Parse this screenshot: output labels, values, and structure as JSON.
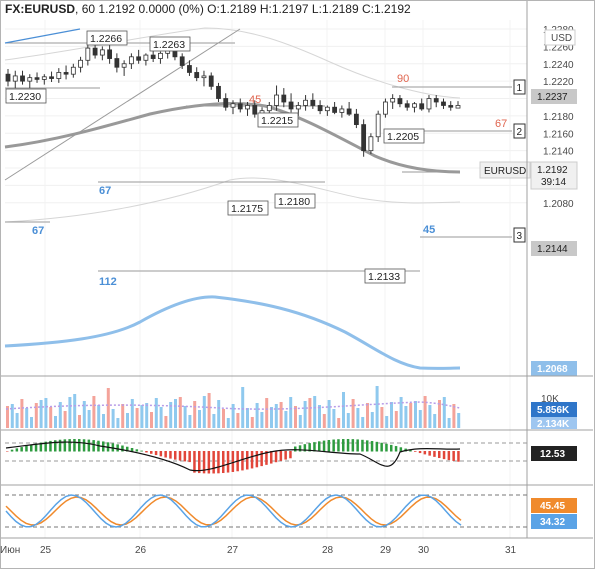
{
  "header": {
    "symbol": "FX:EURUSD",
    "interval": "60",
    "last": "1.2192",
    "change": "0.0000 (0%)",
    "o_label": "O:",
    "o_value": "1.2189",
    "h_label": "H:",
    "h_value": "1.2197",
    "l_label": "L:",
    "l_value": "1.2189",
    "c_label": "C:",
    "c_value": "1.2192"
  },
  "currency_label": "USD",
  "price_axis": {
    "ticks": [
      "1.2280",
      "1.2260",
      "1.2240",
      "1.2220",
      "1.2200",
      "1.2180",
      "1.2160",
      "1.2140",
      "1.2120",
      "1.2100",
      "1.2080"
    ],
    "tick_values": [
      1.228,
      1.226,
      1.224,
      1.222,
      1.22,
      1.218,
      1.216,
      1.214,
      1.212,
      1.21,
      1.208
    ]
  },
  "price_tags": {
    "t1": {
      "value": 1.2237,
      "text": "1.2237",
      "color": "#c8c8c8"
    },
    "t2": {
      "value": 1.2192,
      "sym": "EURUSD",
      "text": "1.2192",
      "timer": "39:14",
      "color": "#f0f0f0"
    },
    "t3": {
      "value": 1.2144,
      "text": "1.2144",
      "color": "#c8c8c8"
    },
    "t4": {
      "value": 1.2068,
      "text": "1.2068",
      "color": "#8fbfea"
    }
  },
  "level_markers": [
    "1",
    "2",
    "3"
  ],
  "callouts": [
    {
      "text": "1.2266",
      "value": 1.2266
    },
    {
      "text": "1.2263",
      "value": 1.2263
    },
    {
      "text": "1.2230",
      "value": 1.223
    },
    {
      "text": "1.2215",
      "value": 1.2215
    },
    {
      "text": "1.2205",
      "value": 1.2205
    },
    {
      "text": "1.2175",
      "value": 1.2175
    },
    {
      "text": "1.2180",
      "value": 1.218
    },
    {
      "text": "1.2133",
      "value": 1.2133
    }
  ],
  "level_labels": {
    "red": [
      "90",
      "45",
      "67"
    ],
    "blue": [
      "67",
      "67",
      "112",
      "45"
    ]
  },
  "volume_panel": {
    "ticks": [
      "10K"
    ],
    "tags": [
      {
        "text": "5.856K",
        "color": "#2f76c9"
      },
      {
        "text": "2.134K",
        "color": "#9ec6f0"
      }
    ]
  },
  "macd_panel": {
    "tag": "12.53",
    "tag_color": "#222222"
  },
  "stoch_panel": {
    "tags": [
      {
        "text": "45.45",
        "color": "#f08a2c"
      },
      {
        "text": "34.32",
        "color": "#5aa3e6"
      }
    ]
  },
  "x_axis": {
    "labels": [
      "25",
      "26",
      "27",
      "28",
      "29",
      "30",
      "31",
      "Июн"
    ]
  },
  "colors": {
    "candle": "#333333",
    "ma_gray": "#999999",
    "ma_blue": "#8fbfea",
    "vol_up": "#8fc9ee",
    "vol_down": "#f4a39a",
    "vol_avg": "#b79ce8",
    "macd_up": "#2e9b3f",
    "macd_down": "#e2463a",
    "stoch_k": "#5aa3e6",
    "stoch_d": "#f08a2c"
  },
  "chart_data": {
    "type": "candlestick",
    "title": "FX:EURUSD, 60",
    "ylim": [
      1.207,
      1.2285
    ],
    "x_labels": [
      "25",
      "26",
      "27",
      "28",
      "29",
      "30",
      "31",
      "Июн"
    ],
    "candles_approx": [
      [
        1.2228,
        1.2234,
        1.2214,
        1.222
      ],
      [
        1.222,
        1.2232,
        1.2212,
        1.2226
      ],
      [
        1.2226,
        1.2232,
        1.2216,
        1.222
      ],
      [
        1.222,
        1.2228,
        1.2212,
        1.2224
      ],
      [
        1.2224,
        1.223,
        1.2218,
        1.2222
      ],
      [
        1.2222,
        1.2228,
        1.2216,
        1.2225
      ],
      [
        1.2225,
        1.2231,
        1.2219,
        1.2223
      ],
      [
        1.2223,
        1.2235,
        1.2218,
        1.223
      ],
      [
        1.223,
        1.2238,
        1.2222,
        1.2228
      ],
      [
        1.2228,
        1.224,
        1.2224,
        1.2236
      ],
      [
        1.2236,
        1.2248,
        1.223,
        1.2244
      ],
      [
        1.2244,
        1.2266,
        1.2238,
        1.2258
      ],
      [
        1.2258,
        1.2264,
        1.2246,
        1.225
      ],
      [
        1.225,
        1.226,
        1.2244,
        1.2256
      ],
      [
        1.2256,
        1.2263,
        1.224,
        1.2246
      ],
      [
        1.2246,
        1.2252,
        1.223,
        1.2236
      ],
      [
        1.2236,
        1.2244,
        1.2226,
        1.224
      ],
      [
        1.224,
        1.2252,
        1.2234,
        1.2248
      ],
      [
        1.2248,
        1.2256,
        1.224,
        1.2244
      ],
      [
        1.2244,
        1.2252,
        1.2238,
        1.225
      ],
      [
        1.225,
        1.2258,
        1.2242,
        1.2246
      ],
      [
        1.2246,
        1.2254,
        1.224,
        1.2252
      ],
      [
        1.2252,
        1.2263,
        1.2246,
        1.2258
      ],
      [
        1.2258,
        1.2263,
        1.2244,
        1.2248
      ],
      [
        1.2248,
        1.2252,
        1.2234,
        1.2238
      ],
      [
        1.2238,
        1.2244,
        1.2226,
        1.223
      ],
      [
        1.223,
        1.2236,
        1.222,
        1.2224
      ],
      [
        1.2224,
        1.2232,
        1.2214,
        1.2226
      ],
      [
        1.2226,
        1.223,
        1.221,
        1.2214
      ],
      [
        1.2214,
        1.2218,
        1.2196,
        1.22
      ],
      [
        1.22,
        1.2206,
        1.2186,
        1.219
      ],
      [
        1.219,
        1.2198,
        1.2182,
        1.2194
      ],
      [
        1.2194,
        1.22,
        1.2184,
        1.2188
      ],
      [
        1.2188,
        1.2196,
        1.218,
        1.2192
      ],
      [
        1.2192,
        1.2198,
        1.2178,
        1.2182
      ],
      [
        1.2182,
        1.219,
        1.2175,
        1.2186
      ],
      [
        1.2186,
        1.2196,
        1.218,
        1.2192
      ],
      [
        1.2192,
        1.2215,
        1.2186,
        1.2204
      ],
      [
        1.2204,
        1.2212,
        1.219,
        1.2196
      ],
      [
        1.2196,
        1.2206,
        1.2184,
        1.2188
      ],
      [
        1.2188,
        1.2196,
        1.218,
        1.2192
      ],
      [
        1.2192,
        1.2204,
        1.2186,
        1.2198
      ],
      [
        1.2198,
        1.2206,
        1.2188,
        1.2192
      ],
      [
        1.2192,
        1.2198,
        1.2182,
        1.2186
      ],
      [
        1.2186,
        1.2192,
        1.218,
        1.219
      ],
      [
        1.219,
        1.2196,
        1.2182,
        1.2184
      ],
      [
        1.2184,
        1.2192,
        1.2178,
        1.2188
      ],
      [
        1.2188,
        1.2196,
        1.218,
        1.2182
      ],
      [
        1.2182,
        1.2188,
        1.2166,
        1.217
      ],
      [
        1.217,
        1.2176,
        1.2133,
        1.214
      ],
      [
        1.214,
        1.216,
        1.2136,
        1.2156
      ],
      [
        1.2156,
        1.2186,
        1.215,
        1.2182
      ],
      [
        1.2182,
        1.22,
        1.2178,
        1.2196
      ],
      [
        1.2196,
        1.2205,
        1.2188,
        1.22
      ],
      [
        1.22,
        1.2204,
        1.219,
        1.2194
      ],
      [
        1.2194,
        1.2198,
        1.2186,
        1.219
      ],
      [
        1.219,
        1.2196,
        1.2184,
        1.2194
      ],
      [
        1.2194,
        1.22,
        1.2186,
        1.2188
      ],
      [
        1.2188,
        1.2204,
        1.2184,
        1.22
      ],
      [
        1.22,
        1.2204,
        1.219,
        1.2196
      ],
      [
        1.2196,
        1.22,
        1.2188,
        1.2192
      ],
      [
        1.2192,
        1.2197,
        1.2186,
        1.219
      ],
      [
        1.2189,
        1.2197,
        1.2189,
        1.2192
      ]
    ]
  }
}
